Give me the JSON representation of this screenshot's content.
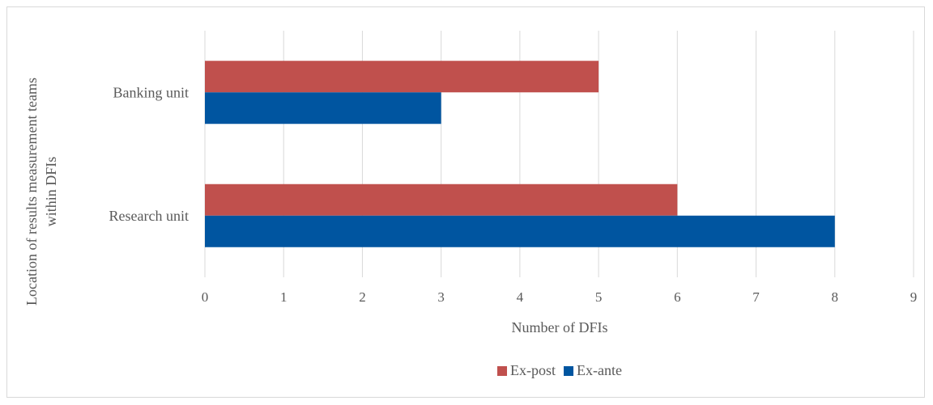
{
  "chart_data": {
    "type": "bar",
    "orientation": "horizontal",
    "categories": [
      "Banking unit",
      "Research unit"
    ],
    "series": [
      {
        "name": "Ex-post",
        "values": [
          5,
          6
        ],
        "color": "#c0504d"
      },
      {
        "name": "Ex-ante",
        "values": [
          3,
          8
        ],
        "color": "#0055a0"
      }
    ],
    "xlabel": "Number of DFIs",
    "ylabel": "Location of results measurement teams within DFIs",
    "ylabel_lines": [
      "Location of results measurement teams",
      "within DFIs"
    ],
    "xlim": [
      0,
      9
    ],
    "xticks": [
      "0",
      "1",
      "2",
      "3",
      "4",
      "5",
      "6",
      "7",
      "8",
      "9"
    ],
    "grid": true,
    "legend_position": "bottom"
  },
  "colors": {
    "gridline": "#d9d9d9",
    "text": "#595959",
    "border": "#d9d9d9"
  }
}
